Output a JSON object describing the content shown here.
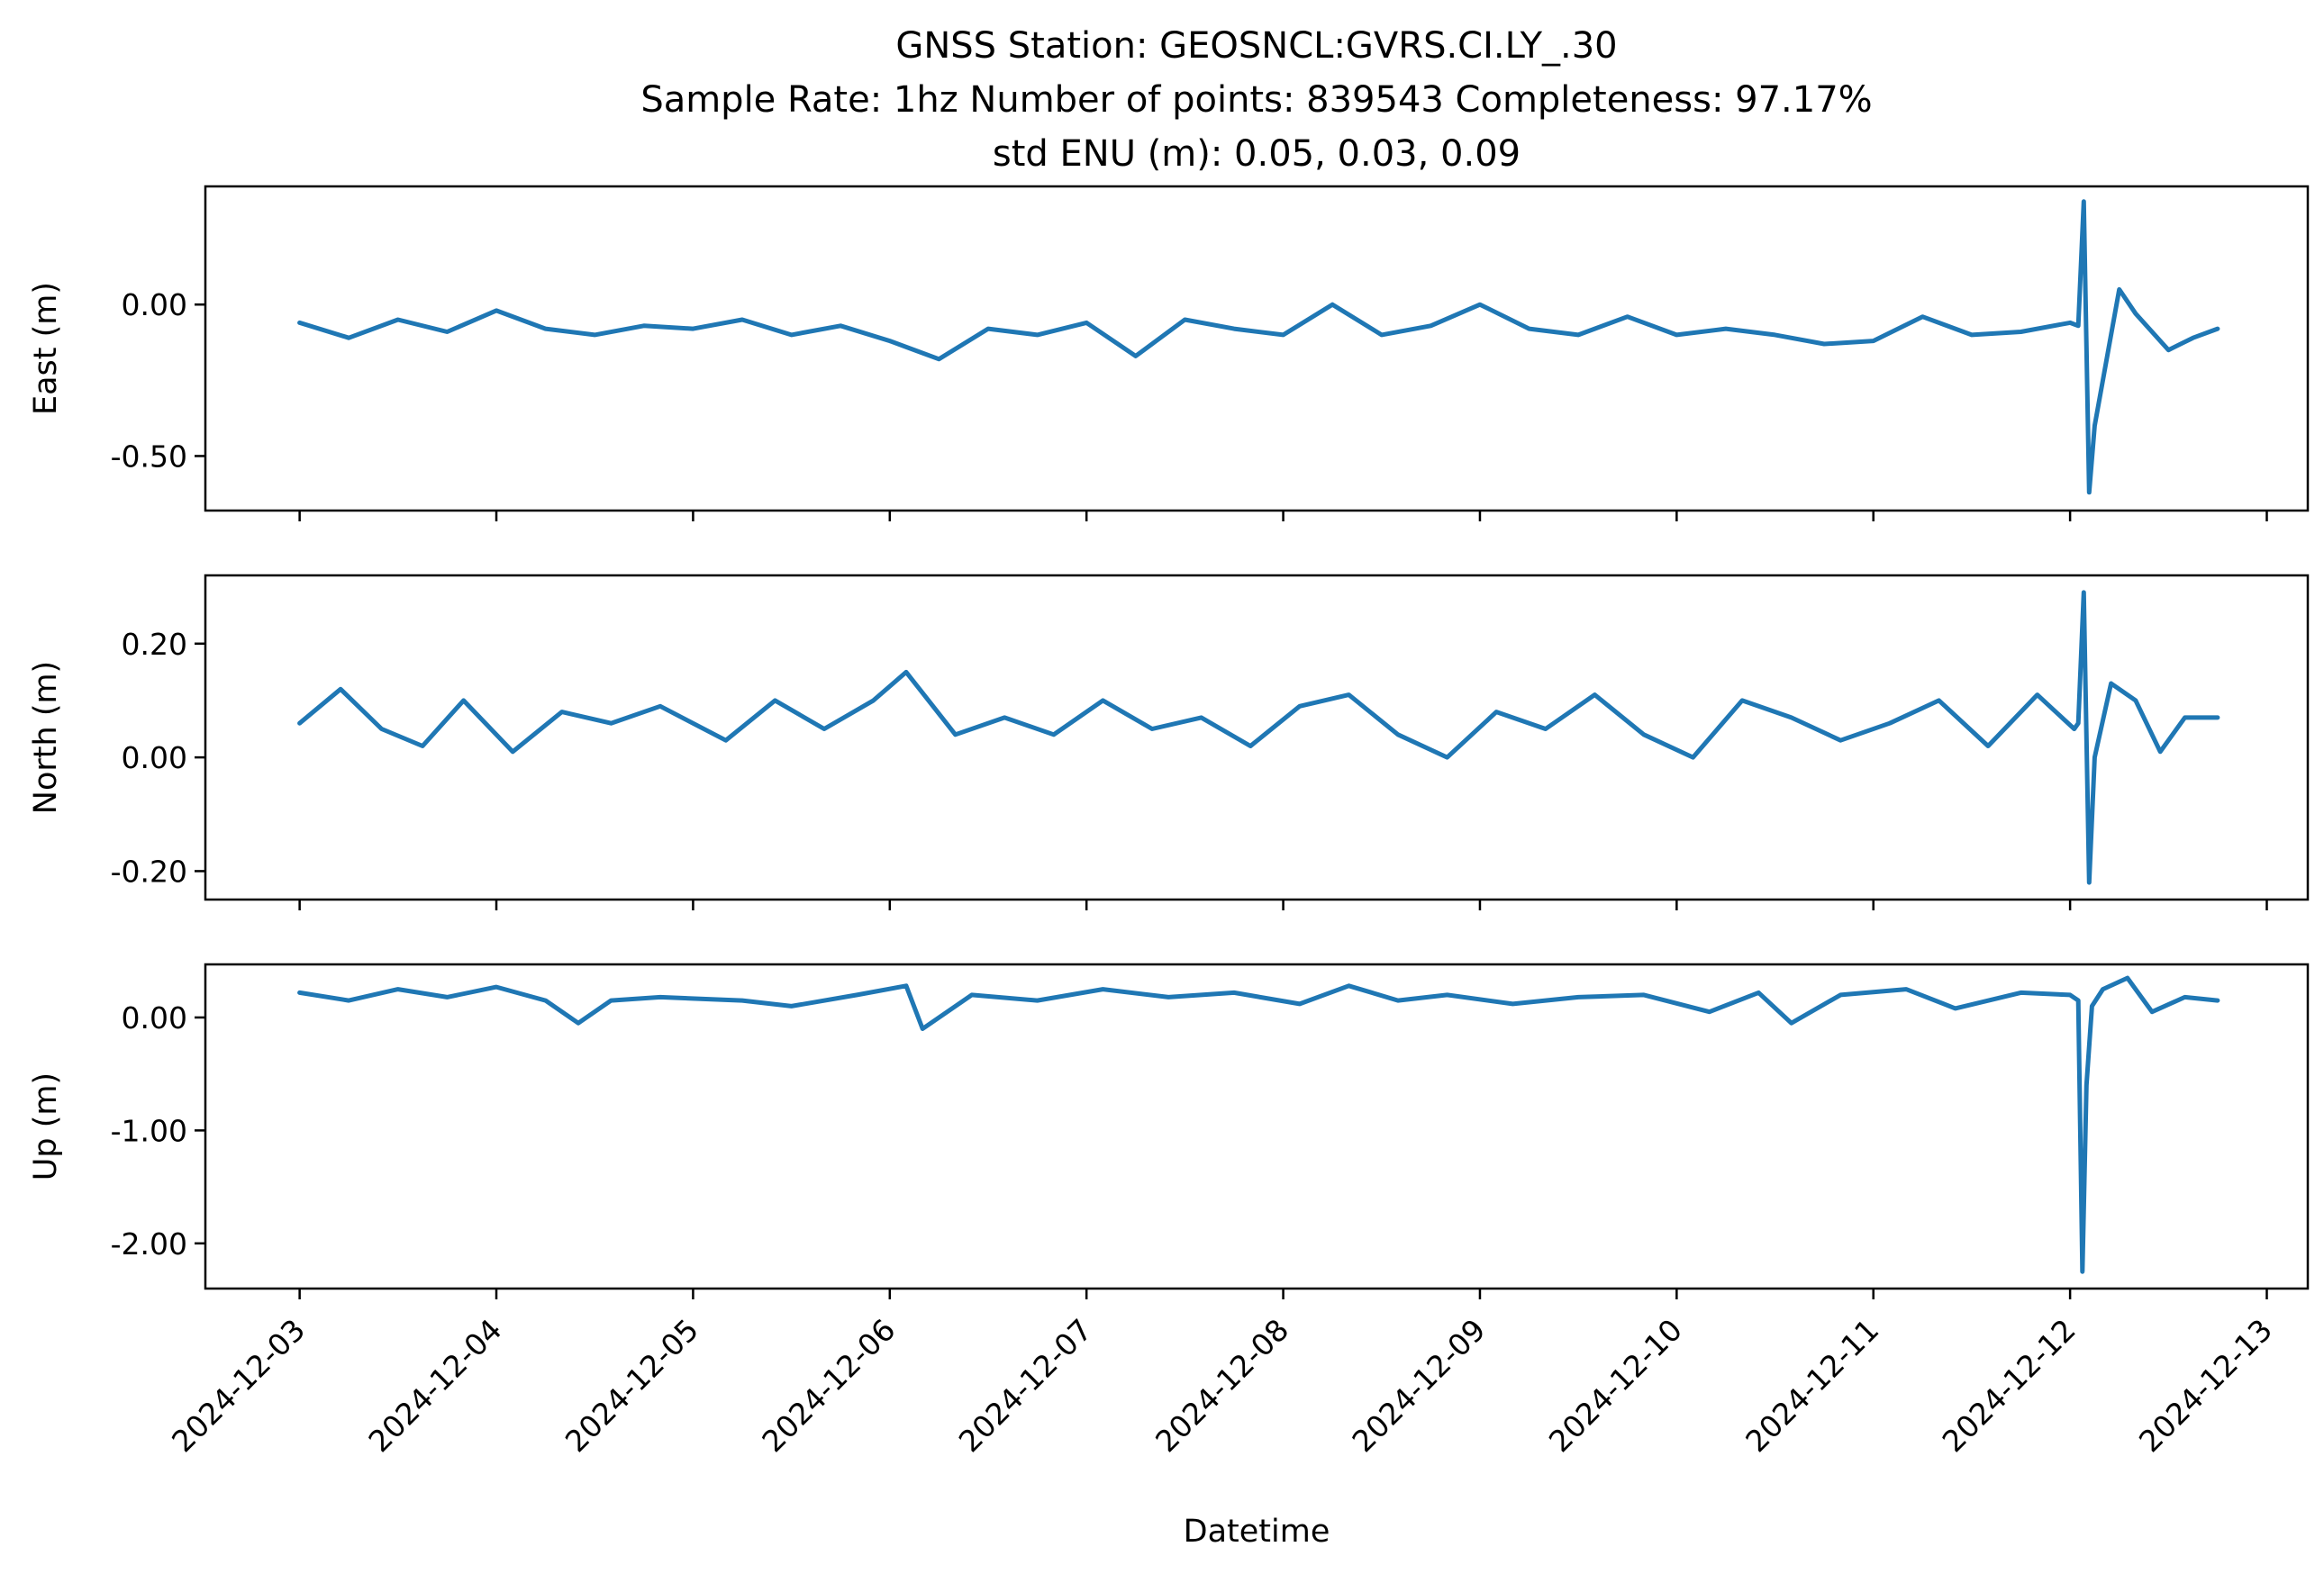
{
  "chart_data": {
    "type": "line",
    "title": [
      "GNSS Station: GEOSNCL:GVRS.CI.LY_.30",
      "Sample Rate: 1hz   Number of points: 839543    Completeness:  97.17%",
      "std ENU (m):  0.05, 0.03, 0.09"
    ],
    "xlabel": "Datetime",
    "x_ticks": [
      "2024-12-03",
      "2024-12-04",
      "2024-12-05",
      "2024-12-06",
      "2024-12-07",
      "2024-12-08",
      "2024-12-09",
      "2024-12-10",
      "2024-12-11",
      "2024-12-12",
      "2024-12-13"
    ],
    "xlim": [
      "2024-12-02T12:30",
      "2024-12-13T05:00"
    ],
    "x_data_range": [
      "2024-12-03T00:00",
      "2024-12-12T18:00"
    ],
    "line_color": "#1f77b4",
    "panels": [
      {
        "name": "east",
        "ylabel": "East (m)",
        "ylim": [
          -0.68,
          0.39
        ],
        "yticks": [
          0.0,
          -0.5
        ],
        "ytick_labels": [
          "0.00",
          "-0.50"
        ],
        "series": {
          "x": [
            "2024-12-03T00:00",
            "2024-12-03T06:00",
            "2024-12-03T12:00",
            "2024-12-03T18:00",
            "2024-12-04T00:00",
            "2024-12-04T06:00",
            "2024-12-04T12:00",
            "2024-12-04T18:00",
            "2024-12-05T00:00",
            "2024-12-05T06:00",
            "2024-12-05T12:00",
            "2024-12-05T18:00",
            "2024-12-06T00:00",
            "2024-12-06T06:00",
            "2024-12-06T12:00",
            "2024-12-06T18:00",
            "2024-12-07T00:00",
            "2024-12-07T06:00",
            "2024-12-07T12:00",
            "2024-12-07T18:00",
            "2024-12-08T00:00",
            "2024-12-08T06:00",
            "2024-12-08T12:00",
            "2024-12-08T18:00",
            "2024-12-09T00:00",
            "2024-12-09T06:00",
            "2024-12-09T12:00",
            "2024-12-09T18:00",
            "2024-12-10T00:00",
            "2024-12-10T06:00",
            "2024-12-10T12:00",
            "2024-12-10T18:00",
            "2024-12-11T00:00",
            "2024-12-11T06:00",
            "2024-12-11T12:00",
            "2024-12-11T18:00",
            "2024-12-12T00:00",
            "2024-12-12T01:00",
            "2024-12-12T01:40",
            "2024-12-12T02:20",
            "2024-12-12T03:00",
            "2024-12-12T06:00",
            "2024-12-12T08:00",
            "2024-12-12T12:00",
            "2024-12-12T15:00",
            "2024-12-12T18:00"
          ],
          "y": [
            -0.06,
            -0.11,
            -0.05,
            -0.09,
            -0.02,
            -0.08,
            -0.1,
            -0.07,
            -0.08,
            -0.05,
            -0.1,
            -0.07,
            -0.12,
            -0.18,
            -0.08,
            -0.1,
            -0.06,
            -0.17,
            -0.05,
            -0.08,
            -0.1,
            0.0,
            -0.1,
            -0.07,
            0.0,
            -0.08,
            -0.1,
            -0.04,
            -0.1,
            -0.08,
            -0.1,
            -0.13,
            -0.12,
            -0.04,
            -0.1,
            -0.09,
            -0.06,
            -0.07,
            0.34,
            -0.62,
            -0.4,
            0.05,
            -0.03,
            -0.15,
            -0.11,
            -0.08
          ]
        }
      },
      {
        "name": "north",
        "ylabel": "North (m)",
        "ylim": [
          -0.25,
          0.32
        ],
        "yticks": [
          0.2,
          0.0,
          -0.2
        ],
        "ytick_labels": [
          "0.20",
          "0.00",
          "-0.20"
        ],
        "series": {
          "x": [
            "2024-12-03T00:00",
            "2024-12-03T05:00",
            "2024-12-03T10:00",
            "2024-12-03T15:00",
            "2024-12-03T20:00",
            "2024-12-04T02:00",
            "2024-12-04T08:00",
            "2024-12-04T14:00",
            "2024-12-04T20:00",
            "2024-12-05T04:00",
            "2024-12-05T10:00",
            "2024-12-05T16:00",
            "2024-12-05T22:00",
            "2024-12-06T02:00",
            "2024-12-06T08:00",
            "2024-12-06T14:00",
            "2024-12-06T20:00",
            "2024-12-07T02:00",
            "2024-12-07T08:00",
            "2024-12-07T14:00",
            "2024-12-07T20:00",
            "2024-12-08T02:00",
            "2024-12-08T08:00",
            "2024-12-08T14:00",
            "2024-12-08T20:00",
            "2024-12-09T02:00",
            "2024-12-09T08:00",
            "2024-12-09T14:00",
            "2024-12-09T20:00",
            "2024-12-10T02:00",
            "2024-12-10T08:00",
            "2024-12-10T14:00",
            "2024-12-10T20:00",
            "2024-12-11T02:00",
            "2024-12-11T08:00",
            "2024-12-11T14:00",
            "2024-12-11T20:00",
            "2024-12-12T00:30",
            "2024-12-12T01:00",
            "2024-12-12T01:40",
            "2024-12-12T02:20",
            "2024-12-12T03:00",
            "2024-12-12T05:00",
            "2024-12-12T08:00",
            "2024-12-12T11:00",
            "2024-12-12T14:00",
            "2024-12-12T18:00"
          ],
          "y": [
            0.06,
            0.12,
            0.05,
            0.02,
            0.1,
            0.01,
            0.08,
            0.06,
            0.09,
            0.03,
            0.1,
            0.05,
            0.1,
            0.15,
            0.04,
            0.07,
            0.04,
            0.1,
            0.05,
            0.07,
            0.02,
            0.09,
            0.11,
            0.04,
            0.0,
            0.08,
            0.05,
            0.11,
            0.04,
            0.0,
            0.1,
            0.07,
            0.03,
            0.06,
            0.1,
            0.02,
            0.11,
            0.05,
            0.06,
            0.29,
            -0.22,
            0.0,
            0.13,
            0.1,
            0.01,
            0.07,
            0.07
          ]
        }
      },
      {
        "name": "up",
        "ylabel": "Up (m)",
        "ylim": [
          -2.4,
          0.47
        ],
        "yticks": [
          0.0,
          -1.0,
          -2.0
        ],
        "ytick_labels": [
          "0.00",
          "-1.00",
          "-2.00"
        ],
        "series": {
          "x": [
            "2024-12-03T00:00",
            "2024-12-03T06:00",
            "2024-12-03T12:00",
            "2024-12-03T18:00",
            "2024-12-04T00:00",
            "2024-12-04T06:00",
            "2024-12-04T10:00",
            "2024-12-04T14:00",
            "2024-12-04T20:00",
            "2024-12-05T06:00",
            "2024-12-05T12:00",
            "2024-12-05T20:00",
            "2024-12-06T02:00",
            "2024-12-06T04:00",
            "2024-12-06T10:00",
            "2024-12-06T18:00",
            "2024-12-07T02:00",
            "2024-12-07T10:00",
            "2024-12-07T18:00",
            "2024-12-08T02:00",
            "2024-12-08T08:00",
            "2024-12-08T14:00",
            "2024-12-08T20:00",
            "2024-12-09T04:00",
            "2024-12-09T12:00",
            "2024-12-09T20:00",
            "2024-12-10T04:00",
            "2024-12-10T10:00",
            "2024-12-10T14:00",
            "2024-12-10T20:00",
            "2024-12-11T04:00",
            "2024-12-11T10:00",
            "2024-12-11T18:00",
            "2024-12-12T00:00",
            "2024-12-12T01:00",
            "2024-12-12T01:30",
            "2024-12-12T02:00",
            "2024-12-12T02:40",
            "2024-12-12T04:00",
            "2024-12-12T07:00",
            "2024-12-12T10:00",
            "2024-12-12T14:00",
            "2024-12-12T18:00"
          ],
          "y": [
            0.22,
            0.15,
            0.25,
            0.18,
            0.27,
            0.15,
            -0.05,
            0.15,
            0.18,
            0.15,
            0.1,
            0.2,
            0.28,
            -0.1,
            0.2,
            0.15,
            0.25,
            0.18,
            0.22,
            0.12,
            0.28,
            0.15,
            0.2,
            0.12,
            0.18,
            0.2,
            0.05,
            0.22,
            -0.05,
            0.2,
            0.25,
            0.08,
            0.22,
            0.2,
            0.15,
            -2.25,
            -0.6,
            0.1,
            0.25,
            0.35,
            0.05,
            0.18,
            0.15
          ]
        }
      }
    ]
  }
}
